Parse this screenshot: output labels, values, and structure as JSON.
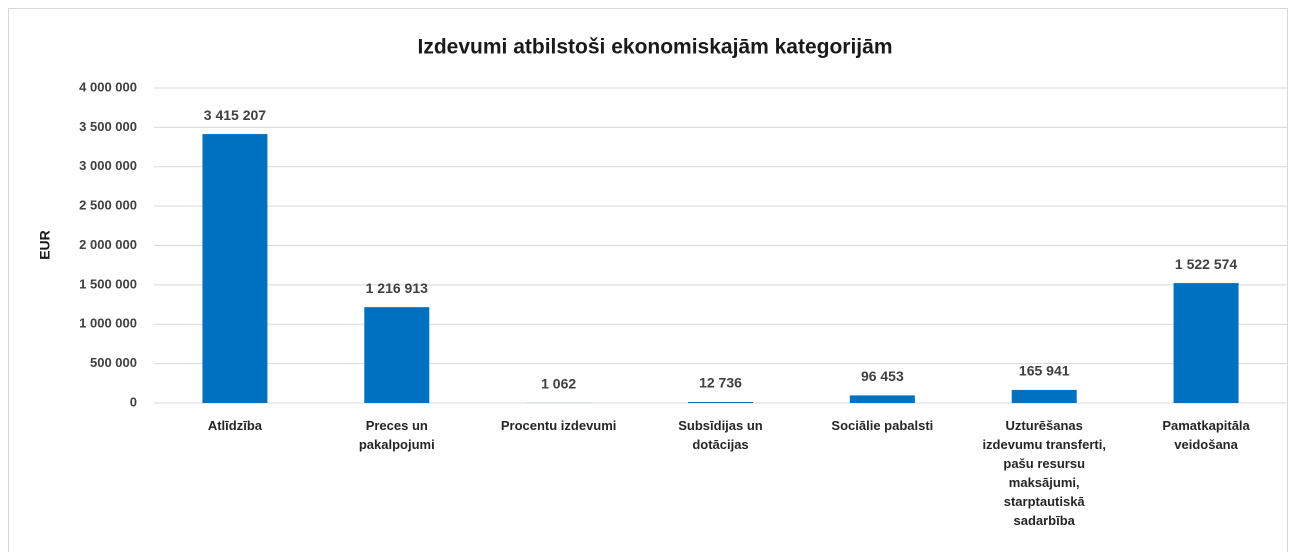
{
  "chart_data": {
    "type": "bar",
    "title": "Izdevumi atbilstoši ekonomiskajām kategorijām",
    "ylabel": "EUR",
    "categories": [
      "Atlīdzība",
      "Preces un pakalpojumi",
      "Procentu izdevumi",
      "Subsīdijas un dotācijas",
      "Sociālie pabalsti",
      "Uzturēšanas izdevumu transferti, pašu resursu maksājumi, starptautiskā sadarbība",
      "Pamatkapitāla veidošana"
    ],
    "values": [
      3415207,
      1216913,
      1062,
      12736,
      96453,
      165941,
      1522574
    ],
    "value_labels": [
      "3 415 207",
      "1 216 913",
      "1 062",
      "12 736",
      "96 453",
      "165 941",
      "1 522 574"
    ],
    "color": "#0070c0",
    "ylim": [
      0,
      4000000
    ],
    "yticks": [
      0,
      {
        "value": 500000,
        "label": "500 000"
      },
      {
        "value": 1000000,
        "label": "1 000 000"
      },
      {
        "value": 1500000,
        "label": "1 500 000"
      },
      {
        "value": 2000000,
        "label": "2 000 000"
      },
      {
        "value": 2500000,
        "label": "2 500 000"
      },
      {
        "value": 3000000,
        "label": "3 000 000"
      },
      {
        "value": 3500000,
        "label": "3 500 000"
      },
      {
        "value": 4000000,
        "label": "4 000 000"
      }
    ],
    "grid": true
  }
}
